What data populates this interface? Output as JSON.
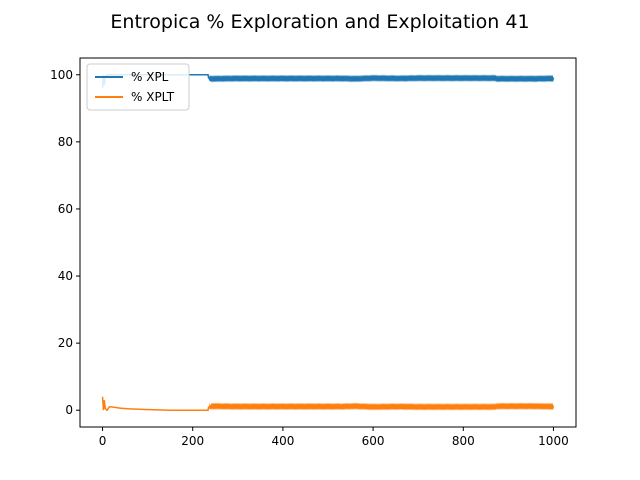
{
  "chart_data": {
    "type": "line",
    "title": "Entropica % Exploration and Exploitation 41",
    "xlabel": "",
    "ylabel": "",
    "xlim": [
      -50,
      1050
    ],
    "ylim": [
      -5,
      105
    ],
    "xticks": [
      0,
      200,
      400,
      600,
      800,
      1000
    ],
    "yticks": [
      0,
      20,
      40,
      60,
      80,
      100
    ],
    "grid": false,
    "legend_position": "top-left",
    "series": [
      {
        "name": "% XPL",
        "color": "#1f77b4",
        "x": [
          0,
          2,
          4,
          6,
          10,
          20,
          40,
          60,
          100,
          150,
          200,
          234,
          235,
          240,
          300,
          400,
          500,
          530,
          560,
          600,
          660,
          700,
          800,
          870,
          875,
          880,
          900,
          950,
          1000
        ],
        "y": [
          96,
          100,
          97,
          99.5,
          100,
          100,
          100,
          100,
          100,
          100,
          100,
          100,
          99.1,
          98.8,
          98.9,
          98.9,
          98.9,
          98.9,
          98.8,
          99.0,
          98.9,
          99.0,
          99.0,
          99.0,
          98.8,
          98.8,
          98.8,
          98.8,
          98.9
        ],
        "jitter": 0.25
      },
      {
        "name": "% XPLT",
        "color": "#ff7f0e",
        "x": [
          0,
          2,
          4,
          6,
          10,
          15,
          20,
          40,
          60,
          100,
          150,
          200,
          234,
          235,
          240,
          300,
          400,
          500,
          530,
          560,
          600,
          660,
          700,
          800,
          870,
          875,
          880,
          900,
          950,
          1000
        ],
        "y": [
          4,
          0,
          3,
          0.5,
          0,
          1,
          1,
          0.6,
          0.4,
          0.2,
          0,
          0,
          0,
          0.9,
          1.2,
          1.1,
          1.1,
          1.1,
          1.1,
          1.2,
          1.0,
          1.1,
          1.0,
          1.0,
          1.0,
          1.2,
          1.2,
          1.2,
          1.2,
          1.1
        ],
        "jitter": 0.25
      }
    ]
  }
}
